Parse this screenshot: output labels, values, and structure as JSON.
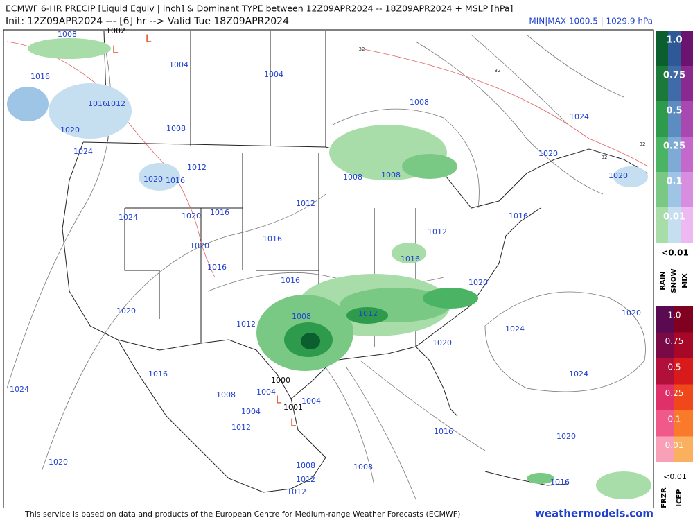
{
  "header": {
    "title": "ECMWF 6-HR PRECIP [Liquid Equiv | inch] & Dominant TYPE between 12Z09APR2024 -- 18Z09APR2024 + MSLP [hPa]",
    "subtitle": "Init: 12Z09APR2024 --- [6] hr --> Valid Tue 18Z09APR2024",
    "minmax": "MIN|MAX 1000.5 | 1029.9 hPa"
  },
  "legend": {
    "upper": {
      "levels": [
        "1.0",
        "0.75",
        "0.5",
        "0.25",
        "0.1",
        "0.01"
      ],
      "below": "<0.01",
      "types": [
        "RAIN",
        "SNOW",
        "MIX"
      ]
    },
    "lower": {
      "levels": [
        "1.0",
        "0.75",
        "0.5",
        "0.25",
        "0.1",
        "0.01"
      ],
      "below": "<0.01",
      "types": [
        "FRZR",
        "ICEP"
      ]
    }
  },
  "map": {
    "isobar_labels": [
      {
        "text": "1008",
        "color": "#2040d0"
      },
      {
        "text": "1002",
        "color": "#000000"
      },
      {
        "text": "1004",
        "color": "#2040d0"
      },
      {
        "text": "1004",
        "color": "#2040d0"
      },
      {
        "text": "1016",
        "color": "#2040d0"
      },
      {
        "text": "1016",
        "color": "#2040d0"
      },
      {
        "text": "1012",
        "color": "#2040d0"
      },
      {
        "text": "1020",
        "color": "#2040d0"
      },
      {
        "text": "1008",
        "color": "#2040d0"
      },
      {
        "text": "1008",
        "color": "#2040d0"
      },
      {
        "text": "1024",
        "color": "#2040d0"
      },
      {
        "text": "1024",
        "color": "#2040d0"
      },
      {
        "text": "1020",
        "color": "#2040d0"
      },
      {
        "text": "1012",
        "color": "#2040d0"
      },
      {
        "text": "1020",
        "color": "#2040d0"
      },
      {
        "text": "1016",
        "color": "#2040d0"
      },
      {
        "text": "1008",
        "color": "#2040d0"
      },
      {
        "text": "1008",
        "color": "#2040d0"
      },
      {
        "text": "1020",
        "color": "#2040d0"
      },
      {
        "text": "1016",
        "color": "#2040d0"
      },
      {
        "text": "1012",
        "color": "#2040d0"
      },
      {
        "text": "1020",
        "color": "#2040d0"
      },
      {
        "text": "1024",
        "color": "#2040d0"
      },
      {
        "text": "1012",
        "color": "#2040d0"
      },
      {
        "text": "1016",
        "color": "#2040d0"
      },
      {
        "text": "1016",
        "color": "#2040d0"
      },
      {
        "text": "1020",
        "color": "#2040d0"
      },
      {
        "text": "1016",
        "color": "#2040d0"
      },
      {
        "text": "1016",
        "color": "#2040d0"
      },
      {
        "text": "1016",
        "color": "#2040d0"
      },
      {
        "text": "1020",
        "color": "#2040d0"
      },
      {
        "text": "1020",
        "color": "#2040d0"
      },
      {
        "text": "1008",
        "color": "#2040d0"
      },
      {
        "text": "1012",
        "color": "#2040d0"
      },
      {
        "text": "1012",
        "color": "#2040d0"
      },
      {
        "text": "1024",
        "color": "#2040d0"
      },
      {
        "text": "1020",
        "color": "#2040d0"
      },
      {
        "text": "1020",
        "color": "#2040d0"
      },
      {
        "text": "1016",
        "color": "#2040d0"
      },
      {
        "text": "1000",
        "color": "#000000"
      },
      {
        "text": "1004",
        "color": "#2040d0"
      },
      {
        "text": "1004",
        "color": "#2040d0"
      },
      {
        "text": "1001",
        "color": "#000000"
      },
      {
        "text": "1008",
        "color": "#2040d0"
      },
      {
        "text": "1024",
        "color": "#2040d0"
      },
      {
        "text": "1024",
        "color": "#2040d0"
      },
      {
        "text": "1004",
        "color": "#2040d0"
      },
      {
        "text": "1012",
        "color": "#2040d0"
      },
      {
        "text": "1016",
        "color": "#2040d0"
      },
      {
        "text": "1020",
        "color": "#2040d0"
      },
      {
        "text": "1020",
        "color": "#2040d0"
      },
      {
        "text": "1008",
        "color": "#2040d0"
      },
      {
        "text": "1008",
        "color": "#2040d0"
      },
      {
        "text": "1012",
        "color": "#2040d0"
      },
      {
        "text": "1016",
        "color": "#2040d0"
      },
      {
        "text": "1012",
        "color": "#2040d0"
      }
    ],
    "lows": [
      "L",
      "L",
      "L",
      "L"
    ],
    "contour_32": [
      "32",
      "32",
      "32",
      "32"
    ]
  },
  "footer": {
    "credit": "This service is based on data and products of the European Centre for Medium-range Weather Forecasts (ECMWF)",
    "site": "weathermodels.com"
  }
}
